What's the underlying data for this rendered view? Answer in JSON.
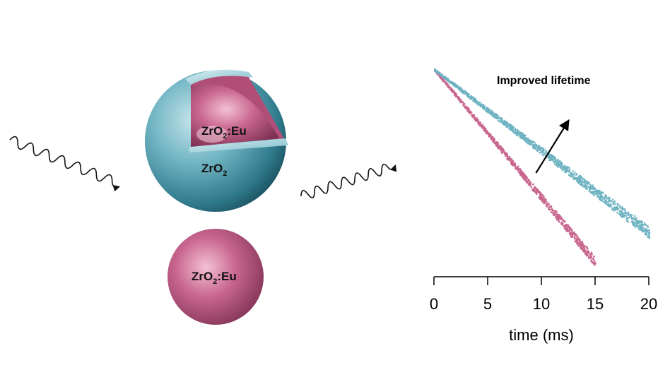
{
  "illustration": {
    "core_shell_core_label": {
      "base": "ZrO",
      "sub": "2",
      "suffix": ":Eu"
    },
    "core_shell_shell_label": {
      "base": "ZrO",
      "sub": "2",
      "suffix": ""
    },
    "bare_particle_label": {
      "base": "ZrO",
      "sub": "2",
      "suffix": ":Eu"
    },
    "colors": {
      "shell": "#6fb3c2",
      "core": "#c9668f",
      "wave": "#111111"
    }
  },
  "chart_data": {
    "type": "scatter",
    "title": "Improved lifetime",
    "xlabel": "time (ms)",
    "ylabel": "",
    "xlim": [
      0,
      20
    ],
    "xticks": [
      0,
      5,
      10,
      15,
      20
    ],
    "y_scale": "log",
    "y_axis_visible": false,
    "series": [
      {
        "color": "#c9668f",
        "lifetime_ms": 3.3,
        "decay_start": 0,
        "noise_floor_from": 10,
        "noise_floor_to": 15
      },
      {
        "color": "#6fb3c2",
        "lifetime_ms": 5.2,
        "decay_start": 0,
        "end": 20
      }
    ],
    "annotation": {
      "text": "Improved lifetime",
      "arrow_from": [
        9.5,
        1.6
      ],
      "arrow_to": [
        12.5,
        2.4
      ]
    }
  }
}
